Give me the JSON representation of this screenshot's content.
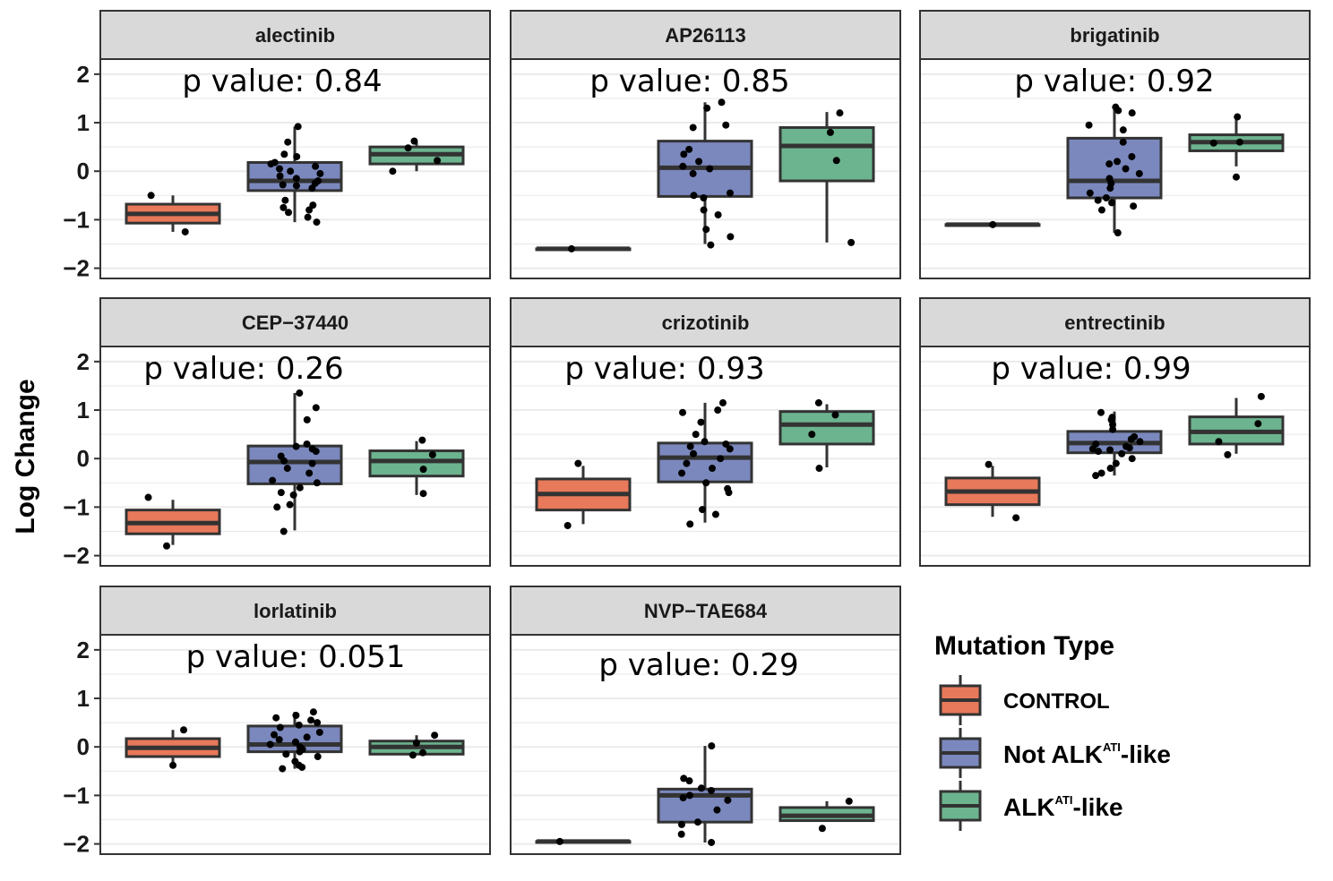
{
  "chart_data": {
    "type": "boxplot",
    "ylabel": "Log Change",
    "ylim": [
      -2.1,
      2.2
    ],
    "yticks": [
      2,
      1,
      0,
      -1,
      -2
    ],
    "ytick_labels": [
      "2",
      "1",
      "0",
      "−1",
      "−2"
    ],
    "grid": true,
    "legend": {
      "title": "Mutation Type",
      "placement": "bottom-right",
      "entries": [
        {
          "key": "control",
          "label": "CONTROL",
          "color": "#E8795A"
        },
        {
          "key": "not_alk",
          "label_main": "Not ALK",
          "label_sup": "ATI",
          "label_suffix": "-like",
          "color": "#7B88BE"
        },
        {
          "key": "alk",
          "label_main": "ALK",
          "label_sup": "ATI",
          "label_suffix": "-like",
          "color": "#6CB48F"
        }
      ]
    },
    "panels": [
      {
        "title": "alectinib",
        "pvalue_label": "p value: 0.84",
        "groups": [
          {
            "q1": -1.07,
            "median": -0.88,
            "q3": -0.68,
            "whisker_low": -1.25,
            "whisker_high": -0.5,
            "points": [
              -1.25,
              -0.5
            ]
          },
          {
            "q1": -0.4,
            "median": -0.2,
            "q3": 0.18,
            "whisker_low": -1.05,
            "whisker_high": 0.92,
            "points": [
              0.92,
              0.6,
              0.35,
              0.3,
              0.18,
              0.15,
              0.1,
              0.05,
              0.0,
              -0.05,
              -0.1,
              -0.15,
              -0.2,
              -0.25,
              -0.28,
              -0.3,
              -0.35,
              -0.6,
              -0.7,
              -0.75,
              -0.8,
              -0.85,
              -0.95,
              -1.05
            ]
          },
          {
            "q1": 0.15,
            "median": 0.35,
            "q3": 0.5,
            "whisker_low": 0.0,
            "whisker_high": 0.6,
            "points": [
              0.62,
              0.48,
              0.22,
              0.0
            ]
          }
        ]
      },
      {
        "title": "AP26113",
        "pvalue_label": "p value: 0.85",
        "groups": [
          {
            "q1": -1.6,
            "median": -1.6,
            "q3": -1.6,
            "whisker_low": -1.6,
            "whisker_high": -1.6,
            "points": [
              -1.6
            ]
          },
          {
            "q1": -0.52,
            "median": 0.07,
            "q3": 0.62,
            "whisker_low": -1.5,
            "whisker_high": 1.42,
            "points": [
              1.42,
              1.3,
              0.95,
              0.9,
              0.45,
              0.35,
              0.2,
              0.1,
              0.05,
              -0.05,
              -0.45,
              -0.5,
              -0.55,
              -0.8,
              -0.9,
              -1.2,
              -1.35,
              -1.52
            ]
          },
          {
            "q1": -0.2,
            "median": 0.52,
            "q3": 0.9,
            "whisker_low": -1.47,
            "whisker_high": 1.22,
            "points": [
              1.2,
              0.8,
              0.22,
              -1.47
            ]
          }
        ]
      },
      {
        "title": "brigatinib",
        "pvalue_label": "p value: 0.92",
        "groups": [
          {
            "q1": -1.1,
            "median": -1.1,
            "q3": -1.1,
            "whisker_low": -1.1,
            "whisker_high": -1.1,
            "points": [
              -1.1
            ]
          },
          {
            "q1": -0.55,
            "median": -0.2,
            "q3": 0.68,
            "whisker_low": -1.27,
            "whisker_high": 1.32,
            "points": [
              1.32,
              1.25,
              1.2,
              0.95,
              0.85,
              0.6,
              0.3,
              0.2,
              0.15,
              0.05,
              -0.05,
              -0.15,
              -0.25,
              -0.35,
              -0.45,
              -0.55,
              -0.6,
              -0.65,
              -0.72,
              -0.8,
              -1.27
            ]
          },
          {
            "q1": 0.42,
            "median": 0.6,
            "q3": 0.75,
            "whisker_low": 0.1,
            "whisker_high": 1.1,
            "points": [
              1.12,
              0.6,
              0.58,
              -0.12
            ]
          }
        ]
      },
      {
        "title": "CEP−37440",
        "pvalue_label": "p value: 0.26",
        "groups": [
          {
            "q1": -1.55,
            "median": -1.33,
            "q3": -1.06,
            "whisker_low": -1.78,
            "whisker_high": -0.85,
            "points": [
              -0.8,
              -1.8
            ]
          },
          {
            "q1": -0.52,
            "median": -0.07,
            "q3": 0.26,
            "whisker_low": -1.48,
            "whisker_high": 1.35,
            "points": [
              1.35,
              1.05,
              0.8,
              0.3,
              0.25,
              0.2,
              0.15,
              0.05,
              -0.05,
              -0.1,
              -0.2,
              -0.3,
              -0.45,
              -0.5,
              -0.6,
              -0.7,
              -0.75,
              -0.95,
              -1.0,
              -1.5
            ]
          },
          {
            "q1": -0.36,
            "median": -0.05,
            "q3": 0.16,
            "whisker_low": -0.75,
            "whisker_high": 0.36,
            "points": [
              0.38,
              0.08,
              -0.22,
              -0.72
            ]
          }
        ]
      },
      {
        "title": "crizotinib",
        "pvalue_label": "p value: 0.93",
        "groups": [
          {
            "q1": -1.06,
            "median": -0.73,
            "q3": -0.42,
            "whisker_low": -1.35,
            "whisker_high": -0.15,
            "points": [
              -0.1,
              -1.38
            ]
          },
          {
            "q1": -0.48,
            "median": 0.02,
            "q3": 0.32,
            "whisker_low": -1.32,
            "whisker_high": 1.15,
            "points": [
              1.15,
              1.0,
              0.95,
              0.75,
              0.5,
              0.35,
              0.3,
              0.25,
              0.2,
              0.1,
              0.0,
              -0.1,
              -0.2,
              -0.3,
              -0.5,
              -0.62,
              -0.7,
              -1.05,
              -1.15,
              -1.35
            ]
          },
          {
            "q1": 0.3,
            "median": 0.7,
            "q3": 0.97,
            "whisker_low": -0.18,
            "whisker_high": 1.12,
            "points": [
              1.15,
              0.9,
              0.5,
              -0.2
            ]
          }
        ]
      },
      {
        "title": "entrectinib",
        "pvalue_label": "p value: 0.99",
        "groups": [
          {
            "q1": -0.95,
            "median": -0.68,
            "q3": -0.4,
            "whisker_low": -1.2,
            "whisker_high": -0.15,
            "points": [
              -0.12,
              -1.22
            ]
          },
          {
            "q1": 0.12,
            "median": 0.32,
            "q3": 0.56,
            "whisker_low": -0.35,
            "whisker_high": 0.97,
            "points": [
              0.95,
              0.85,
              0.8,
              0.7,
              0.6,
              0.45,
              0.4,
              0.35,
              0.3,
              0.25,
              0.22,
              0.2,
              0.18,
              0.15,
              0.1,
              0.0,
              -0.1,
              -0.2,
              -0.3,
              -0.35
            ]
          },
          {
            "q1": 0.3,
            "median": 0.55,
            "q3": 0.86,
            "whisker_low": 0.1,
            "whisker_high": 1.25,
            "points": [
              1.28,
              0.72,
              0.35,
              0.08
            ]
          }
        ]
      },
      {
        "title": "lorlatinib",
        "pvalue_label": "p value: 0.051",
        "groups": [
          {
            "q1": -0.2,
            "median": -0.02,
            "q3": 0.17,
            "whisker_low": -0.35,
            "whisker_high": 0.35,
            "points": [
              0.35,
              -0.38
            ]
          },
          {
            "q1": -0.1,
            "median": 0.05,
            "q3": 0.43,
            "whisker_low": -0.45,
            "whisker_high": 0.72,
            "points": [
              0.72,
              0.65,
              0.6,
              0.55,
              0.5,
              0.45,
              0.4,
              0.3,
              0.25,
              0.2,
              0.15,
              0.1,
              0.05,
              0.0,
              -0.05,
              -0.1,
              -0.15,
              -0.2,
              -0.3,
              -0.38,
              -0.42,
              -0.45
            ]
          },
          {
            "q1": -0.15,
            "median": 0.0,
            "q3": 0.12,
            "whisker_low": -0.15,
            "whisker_high": 0.24,
            "points": [
              0.24,
              0.08,
              -0.12,
              -0.17
            ]
          }
        ]
      },
      {
        "title": "NVP−TAE684",
        "pvalue_label": "p value: 0.29",
        "groups": [
          {
            "q1": -1.95,
            "median": -1.95,
            "q3": -1.95,
            "whisker_low": -1.95,
            "whisker_high": -1.95,
            "points": [
              -1.95
            ]
          },
          {
            "q1": -1.55,
            "median": -1.0,
            "q3": -0.87,
            "whisker_low": -1.97,
            "whisker_high": 0.02,
            "points": [
              0.02,
              -0.65,
              -0.7,
              -0.85,
              -0.9,
              -1.0,
              -1.05,
              -1.1,
              -1.3,
              -1.55,
              -1.6,
              -1.8,
              -1.97
            ]
          },
          {
            "q1": -1.52,
            "median": -1.42,
            "q3": -1.25,
            "whisker_low": -1.52,
            "whisker_high": -1.12,
            "points": [
              -1.12,
              -1.68
            ]
          }
        ]
      }
    ]
  }
}
